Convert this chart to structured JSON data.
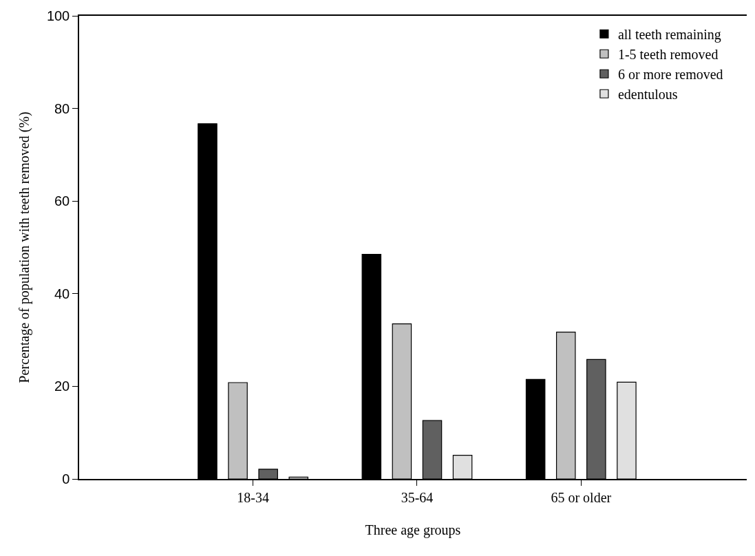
{
  "chart_data": {
    "type": "bar",
    "xlabel": "Three age groups",
    "ylabel": "Percentage of population with teeth removed (%)",
    "categories": [
      "18-34",
      "35-64",
      "65 or older"
    ],
    "series": [
      {
        "name": "all teeth remaining",
        "color": "#000000",
        "values": [
          76.7,
          48.5,
          21.5
        ]
      },
      {
        "name": "1-5 teeth removed",
        "color": "#c0c0c0",
        "values": [
          20.8,
          33.5,
          31.7
        ]
      },
      {
        "name": "6 or more removed",
        "color": "#606060",
        "values": [
          2.1,
          12.6,
          25.8
        ]
      },
      {
        "name": "edentulous",
        "color": "#e0e0e0",
        "values": [
          0.4,
          5.1,
          20.9
        ]
      }
    ],
    "ylim": [
      0,
      100
    ],
    "yticks": [
      0,
      20,
      40,
      60,
      80,
      100
    ],
    "legend": "top right"
  }
}
